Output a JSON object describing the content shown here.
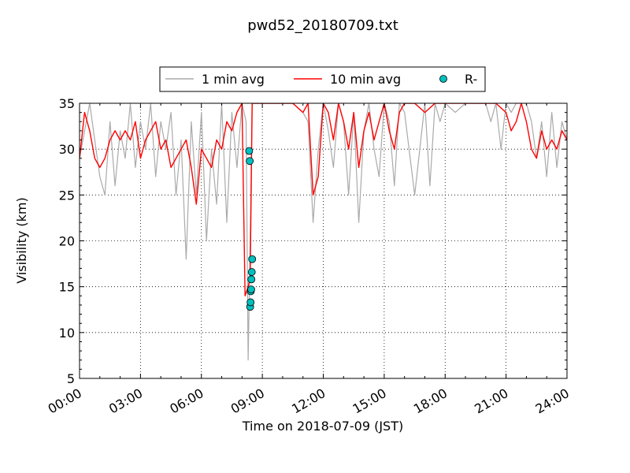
{
  "chart_data": {
    "type": "line",
    "title": "pwd52_20180709.txt",
    "xlabel": "Time on 2018-07-09 (JST)",
    "ylabel": "Visibility (km)",
    "xlim": [
      0,
      24
    ],
    "ylim": [
      5,
      35
    ],
    "x_tick_labels": [
      "00:00",
      "03:00",
      "06:00",
      "09:00",
      "12:00",
      "15:00",
      "18:00",
      "21:00",
      "24:00"
    ],
    "y_tick_labels": [
      "5",
      "10",
      "15",
      "20",
      "25",
      "30",
      "35"
    ],
    "y_tick_values": [
      5,
      10,
      15,
      20,
      25,
      30,
      35
    ],
    "grid": true,
    "legend_placement": "top-center",
    "series": [
      {
        "name": "1 min avg",
        "color": "#aaaaaa",
        "marker": "line",
        "x": [
          0.0,
          0.5,
          0.75,
          1.0,
          1.25,
          1.5,
          1.75,
          2.0,
          2.25,
          2.5,
          2.75,
          3.0,
          3.25,
          3.5,
          3.75,
          4.0,
          4.25,
          4.5,
          4.75,
          5.0,
          5.25,
          5.5,
          5.75,
          6.0,
          6.25,
          6.5,
          6.75,
          7.0,
          7.25,
          7.5,
          7.75,
          8.0,
          8.2,
          8.3,
          8.4,
          8.5,
          8.6,
          8.75,
          9.0,
          9.5,
          10.0,
          10.5,
          11.0,
          11.25,
          11.5,
          11.75,
          12.0,
          12.25,
          12.5,
          12.75,
          13.0,
          13.25,
          13.5,
          13.75,
          14.0,
          14.25,
          14.5,
          14.75,
          15.0,
          15.25,
          15.5,
          15.75,
          16.0,
          16.5,
          17.0,
          17.25,
          17.5,
          17.75,
          18.0,
          18.5,
          19.0,
          19.5,
          20.0,
          20.25,
          20.5,
          20.75,
          21.0,
          21.25,
          21.5,
          21.75,
          22.0,
          22.25,
          22.5,
          22.75,
          23.0,
          23.25,
          23.5,
          23.75,
          24.0
        ],
        "values": [
          29,
          35,
          31,
          27,
          25,
          33,
          26,
          32,
          29,
          35,
          28,
          33,
          30,
          35,
          27,
          33,
          30,
          34,
          25,
          31,
          18,
          33,
          25,
          34,
          20,
          30,
          24,
          35,
          22,
          34,
          28,
          35,
          33,
          7,
          20,
          35,
          35,
          35,
          35,
          35,
          35,
          35,
          34,
          33,
          22,
          30,
          35,
          32,
          28,
          35,
          33,
          25,
          34,
          22,
          32,
          35,
          30,
          27,
          35,
          33,
          26,
          35,
          34,
          25,
          35,
          26,
          35,
          33,
          35,
          34,
          35,
          35,
          35,
          33,
          35,
          30,
          35,
          34,
          35,
          35,
          35,
          33,
          29,
          33,
          27,
          34,
          28,
          33,
          31
        ],
        "values_min_envelope_note": ""
      },
      {
        "name": "10 min avg",
        "color": "#ff0000",
        "marker": "line",
        "x": [
          0.0,
          0.25,
          0.5,
          0.75,
          1.0,
          1.25,
          1.5,
          1.75,
          2.0,
          2.25,
          2.5,
          2.75,
          3.0,
          3.25,
          3.5,
          3.75,
          4.0,
          4.25,
          4.5,
          4.75,
          5.0,
          5.25,
          5.5,
          5.75,
          6.0,
          6.25,
          6.5,
          6.75,
          7.0,
          7.25,
          7.5,
          7.75,
          8.0,
          8.15,
          8.3,
          8.4,
          8.5,
          8.6,
          8.75,
          9.0,
          9.5,
          10.0,
          10.5,
          11.0,
          11.25,
          11.5,
          11.75,
          12.0,
          12.25,
          12.5,
          12.75,
          13.0,
          13.25,
          13.5,
          13.75,
          14.0,
          14.25,
          14.5,
          14.75,
          15.0,
          15.25,
          15.5,
          15.75,
          16.0,
          16.5,
          17.0,
          17.5,
          18.0,
          18.5,
          19.0,
          19.5,
          20.0,
          20.5,
          21.0,
          21.25,
          21.5,
          21.75,
          22.0,
          22.25,
          22.5,
          22.75,
          23.0,
          23.25,
          23.5,
          23.75,
          24.0
        ],
        "values": [
          29,
          34,
          32,
          29,
          28,
          29,
          31,
          32,
          31,
          32,
          31,
          33,
          29,
          31,
          32,
          33,
          30,
          31,
          28,
          29,
          30,
          31,
          28,
          24,
          30,
          29,
          28,
          31,
          30,
          33,
          32,
          34,
          35,
          14,
          15,
          16,
          35,
          35,
          35,
          35,
          35,
          35,
          35,
          34,
          35,
          25,
          27,
          35,
          34,
          31,
          35,
          33,
          30,
          34,
          28,
          32,
          34,
          31,
          33,
          35,
          32,
          30,
          34,
          35,
          35,
          34,
          35,
          35,
          35,
          35,
          35,
          35,
          35,
          34,
          32,
          33,
          35,
          33,
          30,
          29,
          32,
          30,
          31,
          30,
          32,
          31
        ]
      },
      {
        "name": "R-",
        "color": "#00bfbf",
        "marker": "circle",
        "x": [
          8.35,
          8.38,
          8.4,
          8.42,
          8.43,
          8.45,
          8.46,
          8.48,
          8.5
        ],
        "values": [
          29.8,
          28.7,
          12.8,
          13.3,
          14.5,
          14.7,
          15.8,
          16.6,
          18.0
        ]
      }
    ]
  }
}
